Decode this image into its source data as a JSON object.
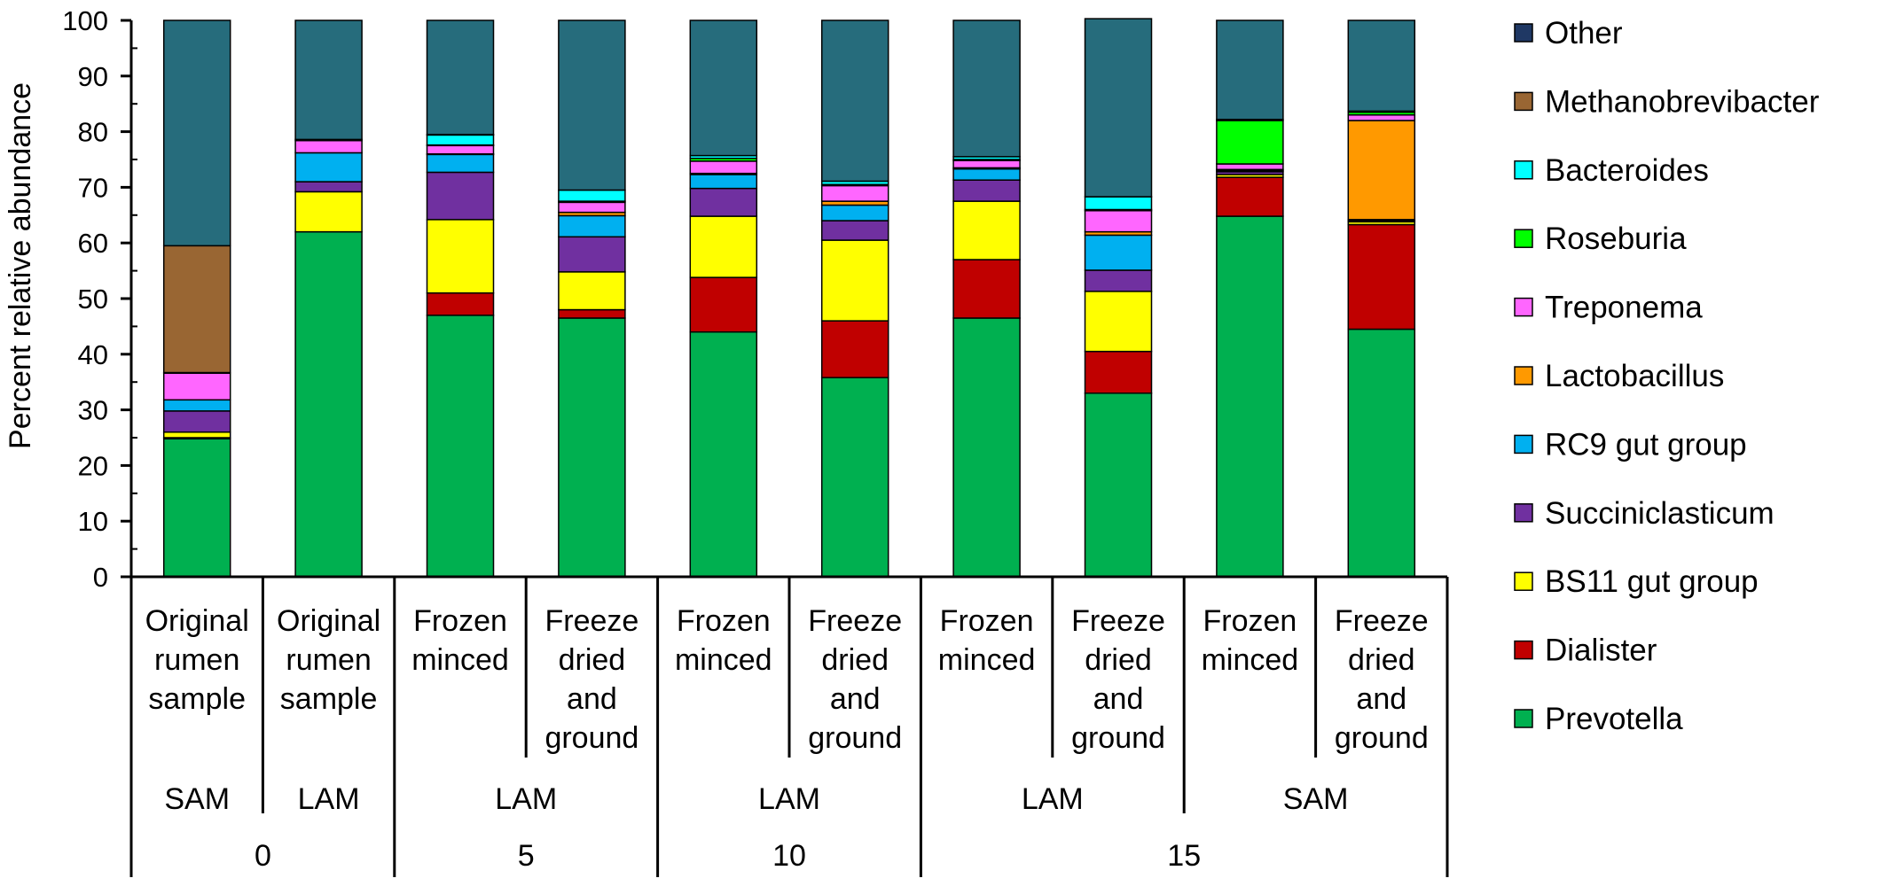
{
  "chart_data": {
    "type": "bar",
    "stacked": true,
    "title": "",
    "xlabel": "",
    "ylabel": "Percent relative abundance",
    "ylim": [
      0,
      100
    ],
    "yticks": [
      0,
      10,
      20,
      30,
      40,
      50,
      60,
      70,
      80,
      90,
      100
    ],
    "categories": [
      [
        "Original",
        "rumen",
        "sample"
      ],
      [
        "Original",
        "rumen",
        "sample"
      ],
      [
        "Frozen",
        "minced"
      ],
      [
        "Freeze",
        "dried",
        "and",
        "ground"
      ],
      [
        "Frozen",
        "minced"
      ],
      [
        "Freeze",
        "dried",
        "and",
        "ground"
      ],
      [
        "Frozen",
        "minced"
      ],
      [
        "Freeze",
        "dried",
        "and",
        "ground"
      ],
      [
        "Frozen",
        "minced"
      ],
      [
        "Freeze",
        "dried",
        "and",
        "ground"
      ]
    ],
    "group_level_1": [
      {
        "label": "SAM",
        "span": 1
      },
      {
        "label": "LAM",
        "span": 1
      },
      {
        "label": "LAM",
        "span": 2
      },
      {
        "label": "LAM",
        "span": 2
      },
      {
        "label": "LAM",
        "span": 2
      },
      {
        "label": "SAM",
        "span": 2
      }
    ],
    "group_level_2": [
      {
        "label": "0",
        "span": 2
      },
      {
        "label": "5",
        "span": 2
      },
      {
        "label": "10",
        "span": 2
      },
      {
        "label": "15",
        "span": 4
      }
    ],
    "series": [
      {
        "name": "Prevotella",
        "color": "#00b050",
        "values": [
          24.8,
          62.0,
          47.0,
          46.5,
          44.0,
          35.8,
          46.5,
          33.0,
          64.8,
          44.5
        ]
      },
      {
        "name": "Dialister",
        "color": "#c00000",
        "values": [
          0.2,
          0.0,
          4.0,
          1.5,
          9.8,
          10.2,
          10.5,
          7.5,
          7.0,
          18.8
        ]
      },
      {
        "name": "BS11 gut group",
        "color": "#ffff00",
        "values": [
          1.0,
          7.2,
          13.2,
          6.8,
          11.0,
          14.5,
          10.5,
          10.8,
          0.5,
          0.5
        ]
      },
      {
        "name": "Succiniclasticum",
        "color": "#7030a0",
        "values": [
          3.8,
          1.8,
          8.5,
          6.3,
          5.0,
          3.5,
          3.8,
          3.8,
          0.5,
          0.2
        ]
      },
      {
        "name": "RC9 gut group",
        "color": "#00b0f0",
        "values": [
          2.0,
          5.2,
          3.2,
          3.8,
          2.5,
          2.8,
          2.0,
          6.3,
          0.2,
          0.2
        ]
      },
      {
        "name": "Lactobacillus",
        "color": "#ff9900",
        "values": [
          0.0,
          0.0,
          0.1,
          0.6,
          0.2,
          0.7,
          0.2,
          0.6,
          0.2,
          17.8
        ]
      },
      {
        "name": "Treponema",
        "color": "#ff66ff",
        "values": [
          4.8,
          2.2,
          1.5,
          1.8,
          2.2,
          2.8,
          1.3,
          3.8,
          1.0,
          1.0
        ]
      },
      {
        "name": "Roseburia",
        "color": "#00ff00",
        "values": [
          0.0,
          0.0,
          0.1,
          0.2,
          0.5,
          0.2,
          0.2,
          0.2,
          7.8,
          0.5
        ]
      },
      {
        "name": "Bacteroides",
        "color": "#00ffff",
        "values": [
          0.1,
          0.2,
          1.8,
          2.0,
          0.5,
          0.6,
          0.5,
          2.3,
          0.2,
          0.2
        ]
      },
      {
        "name": "Methanobrevibacter",
        "color": "#996633",
        "values": [
          22.8,
          0.0,
          0.1,
          0.0,
          0.0,
          0.0,
          0.0,
          0.0,
          0.0,
          0.0
        ]
      },
      {
        "name": "Other",
        "color": "#266c7c",
        "values": [
          40.5,
          21.4,
          20.5,
          30.5,
          24.3,
          28.9,
          24.5,
          32.0,
          17.8,
          16.3
        ]
      }
    ],
    "legend": {
      "placement": "right",
      "entries": [
        {
          "name": "Other",
          "color": "#1f3864"
        },
        {
          "name": "Methanobrevibacter",
          "color": "#996633"
        },
        {
          "name": "Bacteroides",
          "color": "#00ffff"
        },
        {
          "name": "Roseburia",
          "color": "#00ff00"
        },
        {
          "name": "Treponema",
          "color": "#ff66ff"
        },
        {
          "name": "Lactobacillus",
          "color": "#ff9900"
        },
        {
          "name": "RC9 gut group",
          "color": "#00b0f0"
        },
        {
          "name": "Succiniclasticum",
          "color": "#7030a0"
        },
        {
          "name": "BS11 gut group",
          "color": "#ffff00"
        },
        {
          "name": "Dialister",
          "color": "#c00000"
        },
        {
          "name": "Prevotella",
          "color": "#00b050"
        }
      ]
    }
  }
}
